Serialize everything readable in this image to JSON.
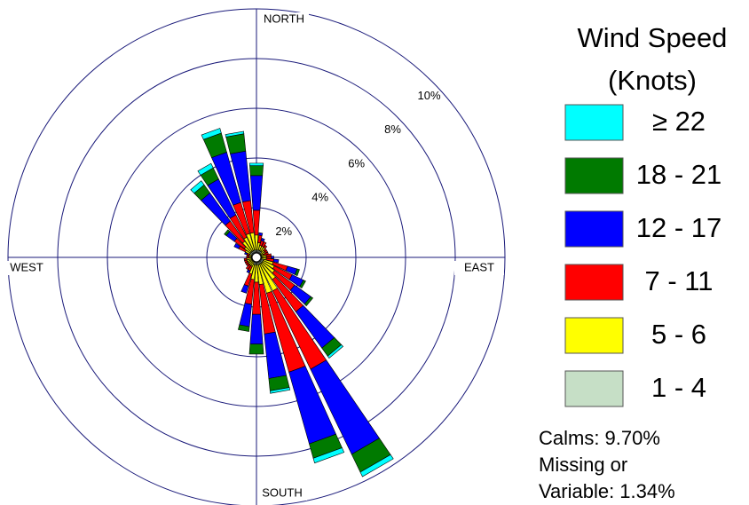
{
  "chart_data": {
    "type": "windrose",
    "title": "Wind Speed",
    "subtitle": "(Knots)",
    "directions": [
      10,
      20,
      30,
      40,
      50,
      60,
      70,
      80,
      90,
      100,
      110,
      120,
      130,
      140,
      150,
      160,
      170,
      180,
      190,
      200,
      210,
      220,
      230,
      240,
      250,
      260,
      270,
      280,
      290,
      300,
      310,
      320,
      330,
      340,
      350,
      360
    ],
    "cardinal_labels": [
      "NORTH",
      "EAST",
      "SOUTH",
      "WEST"
    ],
    "rlim": [
      0,
      10
    ],
    "rticks": [
      {
        "value": 2,
        "label": "2%"
      },
      {
        "value": 4,
        "label": "4%"
      },
      {
        "value": 6,
        "label": "6%"
      },
      {
        "value": 8,
        "label": "8%"
      },
      {
        "value": 10,
        "label": "10%"
      }
    ],
    "series": [
      {
        "name": "≥ 22",
        "color": "#00ffff",
        "values": [
          0,
          0,
          0,
          0,
          0,
          0,
          0,
          0,
          0,
          0,
          0,
          0,
          0,
          0.1,
          0.2,
          0.2,
          0.1,
          0,
          0,
          0,
          0,
          0,
          0,
          0,
          0,
          0,
          0,
          0,
          0,
          0,
          0,
          0.2,
          0.2,
          0.2,
          0.1,
          0.1
        ]
      },
      {
        "name": "18 - 21",
        "color": "#007a00",
        "values": [
          0,
          0,
          0,
          0,
          0,
          0,
          0,
          0,
          0,
          0,
          0.1,
          0.1,
          0.1,
          0.4,
          0.8,
          0.6,
          0.5,
          0.4,
          0.2,
          0,
          0,
          0,
          0,
          0,
          0,
          0,
          0,
          0,
          0,
          0,
          0.1,
          0.4,
          0.5,
          0.8,
          0.7,
          0.4
        ]
      },
      {
        "name": "12 - 17",
        "color": "#0000ff",
        "values": [
          0.1,
          0.1,
          0,
          0,
          0,
          0,
          0,
          0,
          0.1,
          0.2,
          0.4,
          0.5,
          0.8,
          1.8,
          3.8,
          3.0,
          1.8,
          1.2,
          0.9,
          0.3,
          0.1,
          0,
          0,
          0,
          0,
          0,
          0,
          0,
          0.1,
          0.2,
          0.4,
          1.4,
          1.6,
          2.1,
          2.0,
          1.4
        ]
      },
      {
        "name": "7 - 11",
        "color": "#ff0000",
        "values": [
          0.3,
          0.2,
          0.2,
          0.1,
          0.1,
          0.1,
          0.2,
          0.2,
          0.2,
          0.3,
          0.6,
          0.8,
          1.0,
          1.6,
          3.5,
          3.3,
          2.0,
          1.3,
          1.0,
          0.5,
          0.2,
          0.2,
          0.1,
          0.1,
          0.1,
          0.1,
          0.1,
          0.1,
          0.1,
          0.3,
          0.5,
          1.0,
          1.0,
          1.3,
          1.3,
          1.0
        ]
      },
      {
        "name": "5 - 6",
        "color": "#ffff00",
        "values": [
          0.3,
          0.2,
          0.2,
          0.2,
          0.2,
          0.2,
          0.1,
          0.2,
          0.2,
          0.2,
          0.4,
          0.5,
          0.6,
          0.8,
          1.2,
          1.2,
          0.8,
          0.7,
          0.6,
          0.4,
          0.2,
          0.2,
          0.2,
          0.2,
          0.2,
          0.2,
          0.1,
          0.1,
          0.1,
          0.2,
          0.3,
          0.5,
          0.6,
          0.7,
          0.7,
          0.6
        ]
      },
      {
        "name": "1 - 4",
        "color": "#c6dfc6",
        "values": [
          0.3,
          0.3,
          0.3,
          0.3,
          0.2,
          0.2,
          0.2,
          0.2,
          0.2,
          0.2,
          0.3,
          0.3,
          0.3,
          0.3,
          0.3,
          0.3,
          0.3,
          0.3,
          0.3,
          0.3,
          0.2,
          0.2,
          0.2,
          0.2,
          0.2,
          0.2,
          0.2,
          0.2,
          0.2,
          0.3,
          0.3,
          0.3,
          0.3,
          0.3,
          0.3,
          0.3
        ]
      }
    ],
    "notes": [
      "Calms: 9.70%",
      "Missing or",
      "Variable: 1.34%"
    ]
  }
}
